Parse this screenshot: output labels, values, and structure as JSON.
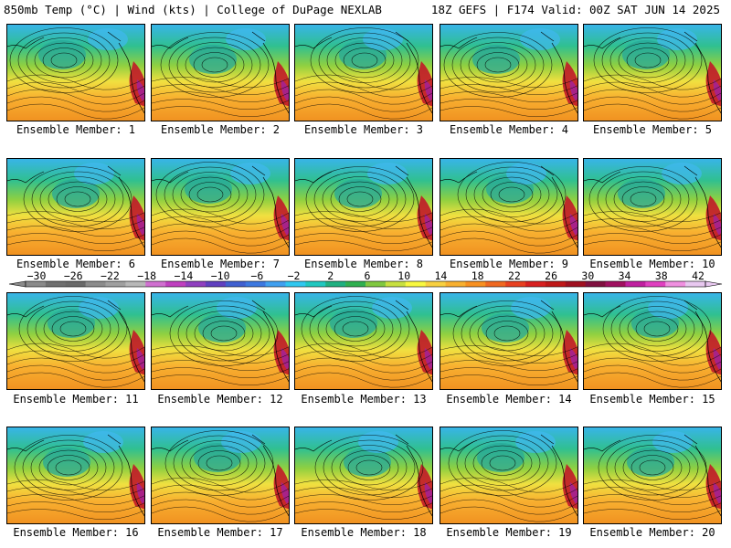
{
  "header": {
    "left": "850mb Temp (°C) | Wind (kts) | College of DuPage NEXLAB",
    "right": "18Z GEFS | F174 Valid: 00Z SAT JUN 14 2025"
  },
  "member_label_prefix": "Ensemble Member: ",
  "members": [
    "1",
    "2",
    "3",
    "4",
    "5",
    "6",
    "7",
    "8",
    "9",
    "10",
    "11",
    "12",
    "13",
    "14",
    "15",
    "16",
    "17",
    "18",
    "19",
    "20"
  ],
  "colorbar": {
    "ticks": [
      "-30",
      "-26",
      "-22",
      "-18",
      "-14",
      "-10",
      "-6",
      "-2",
      "2",
      "6",
      "10",
      "14",
      "18",
      "22",
      "26",
      "30",
      "34",
      "38",
      "42"
    ],
    "colors": [
      "#8a8a8a",
      "#707070",
      "#6a6a6a",
      "#8c8c8c",
      "#a0a0a0",
      "#b8b8b8",
      "#d070d0",
      "#c040c0",
      "#9040c0",
      "#6040c0",
      "#4060d0",
      "#3c78e0",
      "#40a0f0",
      "#30c8f0",
      "#20c8c0",
      "#20b080",
      "#30b050",
      "#80c840",
      "#c8e040",
      "#f8f840",
      "#f8d040",
      "#f8b030",
      "#f89020",
      "#f06820",
      "#e84020",
      "#d82020",
      "#c01818",
      "#a01020",
      "#801040",
      "#a01060",
      "#c020a0",
      "#e040c0",
      "#f090e0",
      "#e8c8f0"
    ]
  }
}
